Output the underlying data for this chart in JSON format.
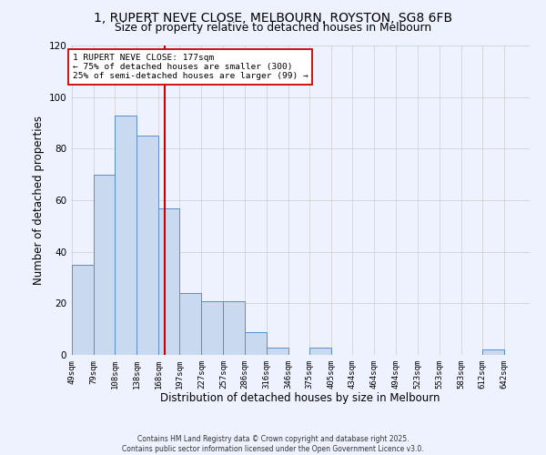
{
  "title": "1, RUPERT NEVE CLOSE, MELBOURN, ROYSTON, SG8 6FB",
  "subtitle": "Size of property relative to detached houses in Melbourn",
  "xlabel": "Distribution of detached houses by size in Melbourn",
  "ylabel": "Number of detached properties",
  "bin_labels": [
    "49sqm",
    "79sqm",
    "108sqm",
    "138sqm",
    "168sqm",
    "197sqm",
    "227sqm",
    "257sqm",
    "286sqm",
    "316sqm",
    "346sqm",
    "375sqm",
    "405sqm",
    "434sqm",
    "464sqm",
    "494sqm",
    "523sqm",
    "553sqm",
    "583sqm",
    "612sqm",
    "642sqm"
  ],
  "bin_edges": [
    49,
    79,
    108,
    138,
    168,
    197,
    227,
    257,
    286,
    316,
    346,
    375,
    405,
    434,
    464,
    494,
    523,
    553,
    583,
    612,
    642
  ],
  "bar_heights": [
    35,
    70,
    93,
    85,
    57,
    24,
    21,
    21,
    9,
    3,
    0,
    3,
    0,
    0,
    0,
    0,
    0,
    0,
    0,
    2,
    0
  ],
  "bar_color": "#c8d9f0",
  "bar_edge_color": "#5b8ec9",
  "vline_x": 177,
  "vline_color": "#cc0000",
  "annotation_title": "1 RUPERT NEVE CLOSE: 177sqm",
  "annotation_line1": "← 75% of detached houses are smaller (300)",
  "annotation_line2": "25% of semi-detached houses are larger (99) →",
  "annotation_box_color": "#ffffff",
  "annotation_box_edge": "#cc0000",
  "ylim": [
    0,
    120
  ],
  "yticks": [
    0,
    20,
    40,
    60,
    80,
    100,
    120
  ],
  "background_color": "#eef2ff",
  "grid_color": "#cccccc",
  "footer1": "Contains HM Land Registry data © Crown copyright and database right 2025.",
  "footer2": "Contains public sector information licensed under the Open Government Licence v3.0."
}
